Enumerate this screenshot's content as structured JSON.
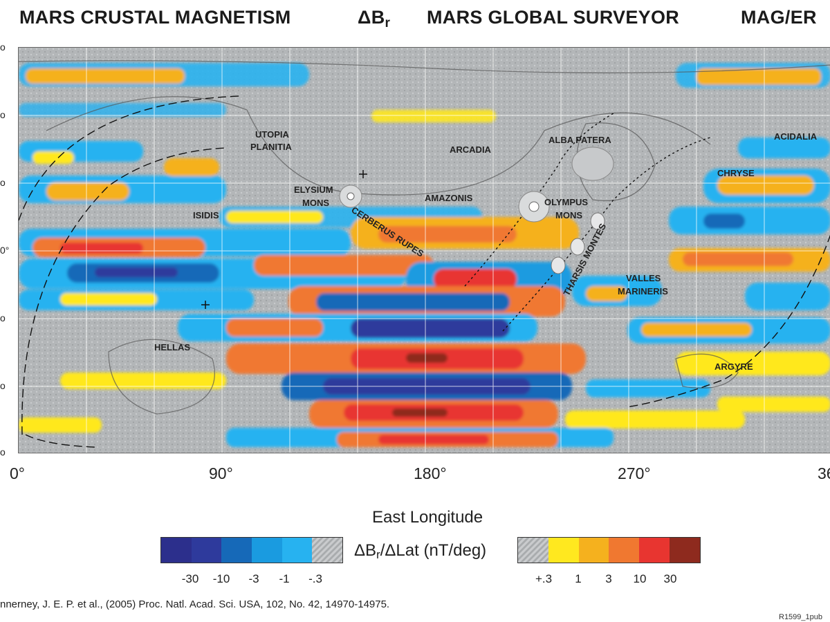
{
  "header": {
    "title": "MARS CRUSTAL MAGNETISM",
    "quantity_symbol": "ΔB",
    "quantity_sub": "r",
    "mission": "MARS GLOBAL SURVEYOR",
    "instrument": "MAG/ER"
  },
  "map": {
    "longitude_labels": [
      "0°",
      "90°",
      "180°",
      "270°",
      "36"
    ],
    "latitude_ticks": [
      "o",
      "o",
      "o",
      "o",
      "o",
      "o",
      "o"
    ],
    "latitude_mid": "0°",
    "axis_title": "East Longitude",
    "features": [
      {
        "id": "utopia",
        "lines": [
          "UTOPIA",
          "PLANITIA"
        ]
      },
      {
        "id": "arcadia",
        "lines": [
          "ARCADIA"
        ]
      },
      {
        "id": "alba",
        "lines": [
          "ALBA PATERA"
        ]
      },
      {
        "id": "acidalia",
        "lines": [
          "ACIDALIA"
        ]
      },
      {
        "id": "chryse",
        "lines": [
          "CHRYSE"
        ]
      },
      {
        "id": "elysium",
        "lines": [
          "ELYSIUM",
          "MONS"
        ]
      },
      {
        "id": "amazonis",
        "lines": [
          "AMAZONIS"
        ]
      },
      {
        "id": "olympus",
        "lines": [
          "OLYMPUS",
          "MONS"
        ]
      },
      {
        "id": "isidis",
        "lines": [
          "ISIDIS"
        ]
      },
      {
        "id": "cerberus",
        "lines": [
          "CERBERUS RUPES"
        ]
      },
      {
        "id": "tharsis",
        "lines": [
          "THARSIS MONTES"
        ]
      },
      {
        "id": "valles",
        "lines": [
          "VALLES",
          "MARINERIS"
        ]
      },
      {
        "id": "hellas",
        "lines": [
          "HELLAS"
        ]
      },
      {
        "id": "argyre",
        "lines": [
          "ARGYRE"
        ]
      }
    ]
  },
  "legend": {
    "label_main": "ΔB",
    "label_sub": "r",
    "label_rest": "/ΔLat (nT/deg)",
    "negative": {
      "colors": [
        "#2c2f8c",
        "#2e3a9c",
        "#1669b8",
        "#1a9be0",
        "#27b2f0"
      ],
      "ticks": [
        "-30",
        "-10",
        "-3",
        "-1",
        "-.3"
      ]
    },
    "positive": {
      "colors": [
        "#ffe81f",
        "#f5b11e",
        "#f07830",
        "#e83530",
        "#8e2a1e"
      ],
      "ticks": [
        "+.3",
        "1",
        "3",
        "10",
        "30"
      ]
    }
  },
  "footer": {
    "citation": "nnerney, J. E. P. et al., (2005) Proc. Natl. Acad. Sci. USA, 102, No. 42, 14970-14975.",
    "figure_id": "R1599_1pub"
  }
}
